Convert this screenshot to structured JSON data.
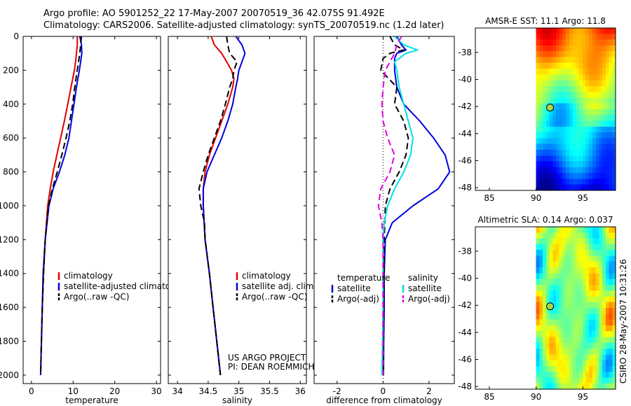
{
  "title": {
    "line1": "Argo profile: AO 5901252_22 17-May-2007 20070519_36 42.075S 91.492E",
    "line2": "Climatology: CARS2006. Satellite-adjusted climatology: synTS_20070519.nc (1.2d later)"
  },
  "colors": {
    "red": "#e00000",
    "blue": "#0000e0",
    "black": "#000000",
    "cyan": "#00e0e0",
    "magenta": "#e000e0"
  },
  "chart_data": [
    {
      "id": "temperature",
      "type": "line",
      "xlabel": "temperature",
      "xlim": [
        -2,
        31
      ],
      "xticks": [
        0,
        10,
        20,
        30
      ],
      "ylim": [
        0,
        2050
      ],
      "yticks": [
        0,
        200,
        400,
        600,
        800,
        1000,
        1200,
        1400,
        1600,
        1800,
        2000
      ],
      "y_reversed": true,
      "series": [
        {
          "name": "climatology",
          "color": "red",
          "style": "solid",
          "depth": [
            0,
            50,
            100,
            150,
            200,
            300,
            400,
            500,
            600,
            700,
            800,
            900,
            1000,
            1200,
            1400,
            1600,
            1800,
            2000
          ],
          "values": [
            11.0,
            11.0,
            10.8,
            10.6,
            10.3,
            9.5,
            8.7,
            7.9,
            7.0,
            6.1,
            5.2,
            4.5,
            3.9,
            3.3,
            2.9,
            2.6,
            2.4,
            2.2
          ]
        },
        {
          "name": "satellite-adjusted climatology",
          "color": "blue",
          "style": "solid",
          "depth": [
            0,
            50,
            100,
            150,
            200,
            300,
            400,
            500,
            600,
            700,
            800,
            900,
            1000,
            1200,
            1400,
            1600,
            1800,
            2000
          ],
          "values": [
            11.6,
            12.0,
            12.1,
            11.8,
            11.5,
            10.8,
            10.2,
            9.6,
            9.0,
            8.0,
            6.7,
            5.2,
            4.2,
            3.3,
            2.8,
            2.6,
            2.4,
            2.2
          ]
        },
        {
          "name": "Argo(..raw -QC)",
          "color": "black",
          "style": "dashed",
          "depth": [
            0,
            50,
            100,
            150,
            200,
            300,
            400,
            500,
            600,
            700,
            800,
            900,
            1000,
            1200,
            1400,
            1600,
            1800,
            2000
          ],
          "values": [
            12.0,
            11.8,
            11.6,
            11.3,
            11.0,
            10.4,
            9.9,
            9.2,
            8.3,
            7.3,
            6.2,
            5.0,
            4.1,
            3.3,
            2.9,
            2.6,
            2.4,
            2.2
          ]
        }
      ],
      "legend": [
        {
          "label": "climatology",
          "color": "red"
        },
        {
          "label": "satellite-adjusted climatology",
          "color": "blue"
        },
        {
          "label": "Argo(..raw -QC)",
          "color": "black"
        }
      ]
    },
    {
      "id": "salinity",
      "type": "line",
      "xlabel": "salinity",
      "xlim": [
        33.85,
        36.1
      ],
      "xticks": [
        34,
        34.5,
        35,
        35.5,
        36
      ],
      "ylim": [
        0,
        2050
      ],
      "y_reversed": true,
      "series": [
        {
          "name": "climatology",
          "color": "red",
          "style": "solid",
          "depth": [
            0,
            50,
            100,
            150,
            200,
            250,
            300,
            400,
            500,
            600,
            700,
            800,
            900,
            1000,
            1200,
            1400,
            1600,
            1800,
            2000
          ],
          "values": [
            34.55,
            34.6,
            34.72,
            34.8,
            34.88,
            34.92,
            34.9,
            34.82,
            34.72,
            34.62,
            34.52,
            34.45,
            34.42,
            34.42,
            34.45,
            34.52,
            34.58,
            34.64,
            34.7
          ]
        },
        {
          "name": "satellite adj. clim.",
          "color": "blue",
          "style": "solid",
          "depth": [
            0,
            50,
            100,
            150,
            200,
            250,
            300,
            400,
            500,
            600,
            700,
            800,
            900,
            1000,
            1200,
            1400,
            1600,
            1800,
            2000
          ],
          "values": [
            34.95,
            35.05,
            35.1,
            35.05,
            35.0,
            34.98,
            34.95,
            34.9,
            34.82,
            34.72,
            34.6,
            34.48,
            34.42,
            34.42,
            34.45,
            34.52,
            34.58,
            34.64,
            34.7
          ]
        },
        {
          "name": "Argo(..raw -QC)",
          "color": "black",
          "style": "dashed",
          "depth": [
            0,
            50,
            100,
            150,
            200,
            250,
            300,
            400,
            500,
            600,
            700,
            800,
            900,
            1000,
            1100,
            1200,
            1400,
            1600,
            1800,
            2000
          ],
          "values": [
            34.8,
            34.82,
            34.85,
            34.97,
            34.92,
            34.9,
            34.85,
            34.78,
            34.7,
            34.6,
            34.5,
            34.42,
            34.35,
            34.38,
            34.44,
            34.45,
            34.52,
            34.58,
            34.64,
            34.7
          ]
        }
      ],
      "legend": [
        {
          "label": "climatology",
          "color": "red"
        },
        {
          "label": "satellite adj. clim.",
          "color": "blue"
        },
        {
          "label": "Argo(..raw -QC)",
          "color": "black"
        }
      ],
      "annotation": [
        "US ARGO PROJECT",
        "PI: DEAN ROEMMICH"
      ]
    },
    {
      "id": "difference",
      "type": "line",
      "xlabel": "difference from climatology",
      "xlim": [
        -3,
        3.1
      ],
      "xticks": [
        -2,
        0,
        2
      ],
      "ylim": [
        0,
        2050
      ],
      "y_reversed": true,
      "zero_line": 0,
      "series": [
        {
          "name": "temperature satellite",
          "color": "blue",
          "style": "solid",
          "depth": [
            0,
            50,
            80,
            100,
            130,
            200,
            300,
            400,
            500,
            600,
            700,
            800,
            900,
            1000,
            1100,
            1200,
            1400,
            1600,
            1800,
            2000
          ],
          "values": [
            0.6,
            0.8,
            1.0,
            0.6,
            0.5,
            0.5,
            0.6,
            0.9,
            1.6,
            2.2,
            2.7,
            2.9,
            2.4,
            1.3,
            0.4,
            0.1,
            0.05,
            0.05,
            0.03,
            0.02
          ]
        },
        {
          "name": "temperature Argo(-adj)",
          "color": "black",
          "style": "dashed",
          "depth": [
            0,
            50,
            80,
            100,
            130,
            200,
            300,
            400,
            500,
            600,
            700,
            800,
            900,
            1000,
            1200,
            1400,
            1600,
            1800,
            2000
          ],
          "values": [
            0.3,
            0.5,
            0.9,
            0.3,
            0.0,
            -0.1,
            0.6,
            0.5,
            0.9,
            1.1,
            1.0,
            0.7,
            0.3,
            0.1,
            0.05,
            0.05,
            0.03,
            0.02,
            0.02
          ]
        },
        {
          "name": "salinity satellite",
          "color": "cyan",
          "style": "solid",
          "depth": [
            0,
            50,
            80,
            100,
            150,
            200,
            300,
            400,
            500,
            600,
            700,
            800,
            900,
            1000,
            1100,
            1200,
            1400,
            1600,
            1800,
            2000
          ],
          "values": [
            0.5,
            0.9,
            1.5,
            1.0,
            0.5,
            0.6,
            0.7,
            0.9,
            1.1,
            1.3,
            1.2,
            0.9,
            0.5,
            0.2,
            0.05,
            0.0,
            0.0,
            0.0,
            -0.02,
            -0.05
          ]
        },
        {
          "name": "salinity Argo(-adj)",
          "color": "magenta",
          "style": "dashed",
          "depth": [
            0,
            50,
            100,
            150,
            200,
            300,
            400,
            500,
            600,
            700,
            800,
            900,
            1000,
            1100,
            1200,
            1400,
            1600,
            1800,
            2000
          ],
          "values": [
            0.8,
            0.6,
            0.5,
            0.3,
            0.1,
            0.0,
            -0.05,
            0.0,
            0.2,
            0.5,
            0.3,
            -0.1,
            -0.2,
            -0.05,
            0.0,
            0.0,
            0.0,
            0.0,
            0.0
          ]
        }
      ],
      "legend_temperature": {
        "header": "temperature",
        "items": [
          {
            "label": "satellite",
            "color": "blue"
          },
          {
            "label": "Argo(-adj)",
            "color": "black"
          }
        ]
      },
      "legend_salinity": {
        "header": "salinity",
        "items": [
          {
            "label": "satellite",
            "color": "cyan"
          },
          {
            "label": "Argo(-adj)",
            "color": "magenta"
          }
        ]
      }
    },
    {
      "id": "sst-map",
      "type": "heatmap",
      "title": "AMSR-E SST: 11.1  Argo: 11.8",
      "xlim": [
        83.5,
        98.5
      ],
      "xticks": [
        85,
        90,
        95
      ],
      "ylim": [
        -48.2,
        -36.2
      ],
      "yticks": [
        -38,
        -40,
        -42,
        -44,
        -46,
        -48
      ],
      "data_lon_start": 90,
      "colormap": "jet",
      "float_position": {
        "lon": 91.492,
        "lat": -42.075
      }
    },
    {
      "id": "sla-map",
      "type": "heatmap",
      "title": "Altimetric SLA: 0.14  Argo: 0.037",
      "xlim": [
        83.5,
        98.5
      ],
      "xticks": [
        85,
        90,
        95
      ],
      "ylim": [
        -48.2,
        -36.2
      ],
      "yticks": [
        -38,
        -40,
        -42,
        -44,
        -46,
        -48
      ],
      "data_lon_start": 90,
      "colormap": "jet",
      "float_position": {
        "lon": 91.492,
        "lat": -42.075
      }
    }
  ],
  "stamp": "CSIRO 28-May-2007 10:31:26"
}
